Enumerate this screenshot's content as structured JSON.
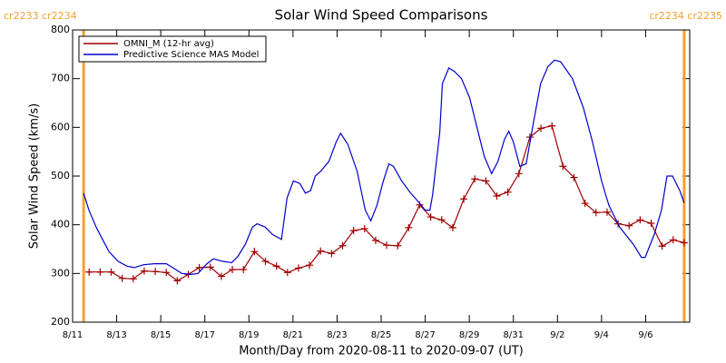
{
  "chart_data": {
    "type": "line",
    "title": "Solar Wind Speed Comparisons",
    "xlabel": "Month/Day from 2020-08-11 to 2020-09-07 (UT)",
    "ylabel": "Solar Wind Speed (km/s)",
    "annotations": [
      "cr2233 cr2234",
      "cr2234 cr2235"
    ],
    "boundaries": {
      "x": [
        0.5,
        27.75
      ],
      "color": "#f5a030"
    },
    "xlim": [
      0,
      28
    ],
    "ylim": [
      200,
      800
    ],
    "yticks": [
      200,
      300,
      400,
      500,
      600,
      700,
      800
    ],
    "xticks": [
      {
        "value": 0,
        "label": "8/11"
      },
      {
        "value": 2,
        "label": "8/13"
      },
      {
        "value": 4,
        "label": "8/15"
      },
      {
        "value": 6,
        "label": "8/17"
      },
      {
        "value": 8,
        "label": "8/19"
      },
      {
        "value": 10,
        "label": "8/21"
      },
      {
        "value": 12,
        "label": "8/23"
      },
      {
        "value": 14,
        "label": "8/25"
      },
      {
        "value": 16,
        "label": "8/27"
      },
      {
        "value": 18,
        "label": "8/29"
      },
      {
        "value": 20,
        "label": "8/31"
      },
      {
        "value": 22,
        "label": "9/2"
      },
      {
        "value": 24,
        "label": "9/4"
      },
      {
        "value": 26,
        "label": "9/6"
      }
    ],
    "legend": "upper left",
    "series": [
      {
        "name": "OMNI_M (12-hr avg)",
        "color": "#a00000",
        "marker": "+",
        "x": [
          0.75,
          1.25,
          1.75,
          2.25,
          2.75,
          3.25,
          3.75,
          4.25,
          4.75,
          5.25,
          5.75,
          6.25,
          6.75,
          7.25,
          7.75,
          8.25,
          8.75,
          9.25,
          9.75,
          10.25,
          10.75,
          11.25,
          11.75,
          12.25,
          12.75,
          13.25,
          13.75,
          14.25,
          14.75,
          15.25,
          15.75,
          16.25,
          16.75,
          17.25,
          17.75,
          18.25,
          18.75,
          19.25,
          19.75,
          20.25,
          20.75,
          21.25,
          21.75,
          22.25,
          22.75,
          23.25,
          23.75,
          24.25,
          24.75,
          25.25,
          25.75,
          26.25,
          26.75,
          27.25,
          27.75
        ],
        "values": [
          303,
          303,
          303,
          290,
          289,
          305,
          304,
          302,
          285,
          298,
          312,
          313,
          294,
          308,
          308,
          345,
          325,
          315,
          302,
          311,
          317,
          346,
          341,
          357,
          388,
          392,
          368,
          358,
          357,
          394,
          441,
          416,
          410,
          394,
          453,
          494,
          490,
          459,
          467,
          505,
          580,
          598,
          603,
          520,
          497,
          444,
          425,
          426,
          402,
          398,
          410,
          403,
          356,
          369,
          363
        ]
      },
      {
        "name": "Predictive Science MAS Model",
        "color": "#0000cc",
        "x": [
          0.5,
          0.74,
          1.07,
          1.36,
          1.65,
          2.06,
          2.47,
          2.8,
          3.22,
          3.71,
          4.25,
          4.62,
          4.95,
          5.36,
          5.69,
          6.1,
          6.39,
          6.8,
          7.22,
          7.5,
          7.84,
          8.16,
          8.37,
          8.74,
          9.07,
          9.48,
          9.73,
          10.02,
          10.31,
          10.56,
          10.8,
          11.01,
          11.26,
          11.63,
          11.96,
          12.16,
          12.49,
          12.91,
          13.28,
          13.53,
          13.81,
          14.1,
          14.35,
          14.56,
          14.93,
          15.34,
          15.67,
          16.0,
          16.21,
          16.33,
          16.66,
          16.78,
          17.07,
          17.32,
          17.65,
          18.02,
          18.35,
          18.68,
          19.01,
          19.3,
          19.59,
          19.79,
          20.0,
          20.29,
          20.58,
          20.91,
          21.24,
          21.57,
          21.86,
          22.14,
          22.68,
          23.18,
          23.59,
          24.0,
          24.33,
          24.82,
          25.44,
          25.81,
          25.98,
          26.39,
          26.72,
          26.97,
          27.22,
          27.55,
          27.75
        ],
        "values": [
          465,
          430,
          395,
          370,
          345,
          325,
          315,
          312,
          318,
          320,
          320,
          310,
          300,
          298,
          300,
          320,
          330,
          325,
          322,
          335,
          360,
          395,
          402,
          395,
          380,
          370,
          455,
          490,
          485,
          465,
          470,
          500,
          510,
          530,
          570,
          588,
          565,
          510,
          430,
          408,
          440,
          490,
          525,
          520,
          490,
          465,
          448,
          430,
          430,
          460,
          590,
          690,
          722,
          715,
          700,
          660,
          600,
          540,
          505,
          530,
          575,
          592,
          570,
          520,
          525,
          610,
          690,
          725,
          738,
          735,
          700,
          640,
          570,
          490,
          440,
          395,
          360,
          333,
          333,
          380,
          430,
          500,
          500,
          470,
          445
        ]
      }
    ]
  }
}
